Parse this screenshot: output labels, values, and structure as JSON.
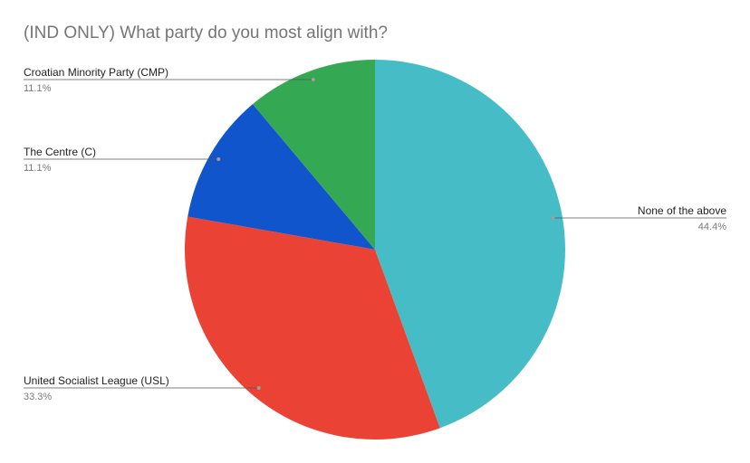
{
  "chart_data": {
    "type": "pie",
    "title": "(IND ONLY) What party do you most align with?",
    "slices": [
      {
        "label": "None of the above",
        "value": 44.4,
        "display": "44.4%",
        "color": "#46bdc6"
      },
      {
        "label": "United Socialist League (USL)",
        "value": 33.3,
        "display": "33.3%",
        "color": "#ea4335"
      },
      {
        "label": "The Centre (C)",
        "value": 11.1,
        "display": "11.1%",
        "color": "#1155cc"
      },
      {
        "label": "Croatian Minority Party (CMP)",
        "value": 11.1,
        "display": "11.1%",
        "color": "#34a853"
      }
    ],
    "start_angle": "12 o'clock",
    "direction": "clockwise",
    "legend": "none"
  }
}
